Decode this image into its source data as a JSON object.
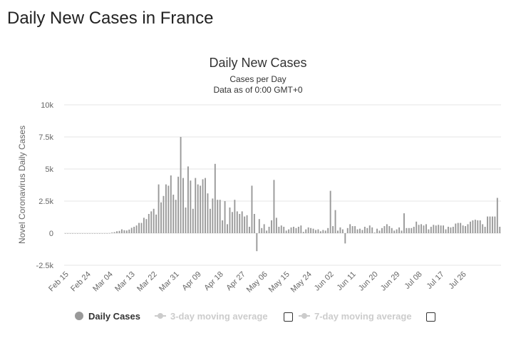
{
  "page": {
    "title": "Daily New Cases in France"
  },
  "legend": {
    "daily_cases": "Daily Cases",
    "ma3": "3-day moving average",
    "ma7": "7-day moving average"
  },
  "colors": {
    "bar": "#999999",
    "grid": "#e6e6e6",
    "axis_text": "#666666",
    "legend_inactive": "#cccccc"
  },
  "chart_data": {
    "type": "bar",
    "title": "Daily New Cases",
    "subtitle": "Cases per Day",
    "subtitle2": "Data as of 0:00 GMT+0",
    "xlabel": "",
    "ylabel": "Novel Coronavirus Daily Cases",
    "ylim": [
      -2500,
      10000
    ],
    "yticks": [
      -2500,
      0,
      2500,
      5000,
      7500,
      10000
    ],
    "ytick_labels": [
      "-2.5k",
      "0",
      "2.5k",
      "5k",
      "7.5k",
      "10k"
    ],
    "xtick_labels": [
      "Feb 15",
      "Feb 24",
      "Mar 04",
      "Mar 13",
      "Mar 22",
      "Mar 31",
      "Apr 09",
      "Apr 18",
      "Apr 27",
      "May 06",
      "May 15",
      "May 24",
      "Jun 02",
      "Jun 11",
      "Jun 20",
      "Jun 29",
      "Jul 08",
      "Jul 17",
      "Jul 26"
    ],
    "grid": true,
    "legend_position": "bottom",
    "start_date": "Feb 15",
    "series": [
      {
        "name": "Daily Cases",
        "values": [
          0,
          0,
          0,
          0,
          0,
          0,
          0,
          0,
          0,
          0,
          0,
          0,
          0,
          0,
          0,
          0,
          2,
          0,
          7,
          50,
          80,
          150,
          180,
          300,
          230,
          210,
          280,
          420,
          500,
          600,
          800,
          800,
          1200,
          1100,
          1500,
          1700,
          1900,
          1450,
          3800,
          2400,
          2900,
          3800,
          3700,
          4500,
          3000,
          2600,
          4400,
          7500,
          4300,
          2000,
          5200,
          4100,
          1900,
          4300,
          3800,
          3700,
          4200,
          4300,
          3100,
          1900,
          2700,
          5400,
          2600,
          2600,
          1000,
          2500,
          700,
          2000,
          1650,
          2600,
          1700,
          1500,
          1700,
          1300,
          1400,
          500,
          3700,
          1500,
          -1400,
          1100,
          400,
          700,
          200,
          500,
          1000,
          4150,
          1200,
          500,
          600,
          500,
          200,
          300,
          450,
          500,
          400,
          500,
          600,
          100,
          300,
          450,
          400,
          350,
          250,
          300,
          150,
          250,
          200,
          400,
          3300,
          550,
          1800,
          200,
          450,
          300,
          -800,
          400,
          700,
          550,
          550,
          300,
          350,
          250,
          500,
          400,
          600,
          450,
          50,
          350,
          200,
          400,
          550,
          700,
          550,
          400,
          200,
          300,
          450,
          200,
          1550,
          400,
          400,
          400,
          500,
          900,
          650,
          700,
          600,
          700,
          300,
          500,
          650,
          600,
          650,
          600,
          600,
          300,
          500,
          450,
          500,
          750,
          800,
          800,
          600,
          550,
          700,
          900,
          1000,
          1050,
          1000,
          1000,
          700,
          500,
          1300,
          1300,
          1300,
          1300,
          2750,
          500
        ]
      }
    ]
  }
}
